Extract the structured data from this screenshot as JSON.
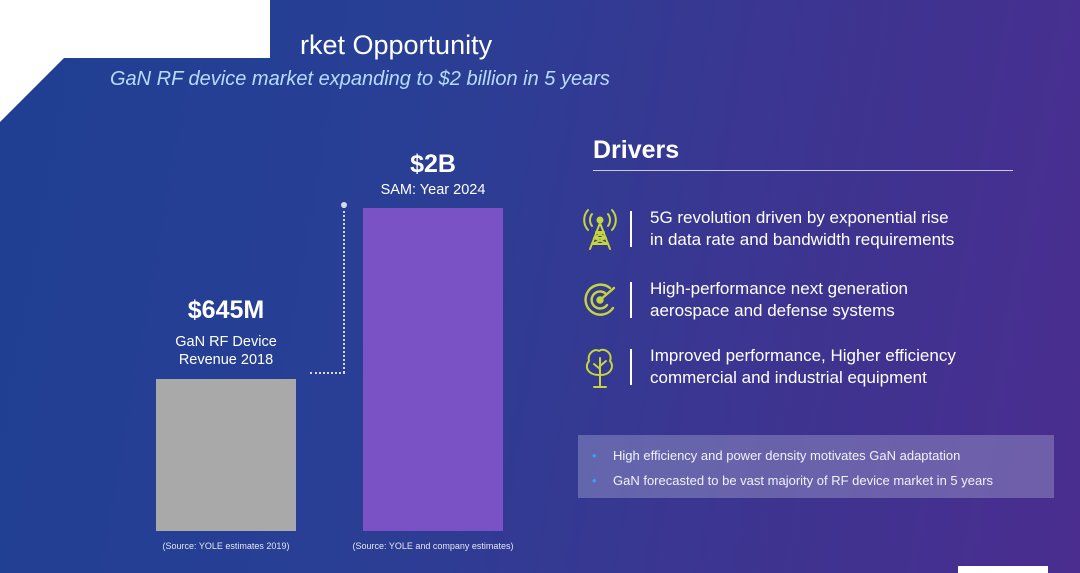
{
  "header": {
    "title": "rket Opportunity",
    "subtitle": "GaN RF device market expanding to $2 billion in 5 years"
  },
  "chart_data": {
    "type": "bar",
    "categories": [
      "2018",
      "2024"
    ],
    "values": [
      645,
      2000
    ],
    "unit": "$M",
    "bars": [
      {
        "value_label": "$645M",
        "caption_line1": "GaN RF Device",
        "caption_line2": "Revenue 2018",
        "source": "(Source: YOLE estimates 2019)",
        "color": "#a9a9a9"
      },
      {
        "value_label": "$2B",
        "caption_line1": "SAM: Year 2024",
        "source": "(Source: YOLE and company estimates)",
        "color": "#7a52c6"
      }
    ]
  },
  "drivers": {
    "title": "Drivers",
    "items": [
      {
        "icon": "cell-tower-icon",
        "line1": "5G revolution driven by exponential rise",
        "line2": "in data rate and bandwidth requirements"
      },
      {
        "icon": "radar-icon",
        "line1": "High-performance next generation",
        "line2": "aerospace and defense systems"
      },
      {
        "icon": "tree-icon",
        "line1": "Improved performance, Higher efficiency",
        "line2": "commercial and industrial equipment"
      }
    ],
    "icon_color": "#c6d63a"
  },
  "notes": [
    "High efficiency and power density motivates GaN adaptation",
    "GaN forecasted to be vast majority of RF device market in 5 years"
  ]
}
